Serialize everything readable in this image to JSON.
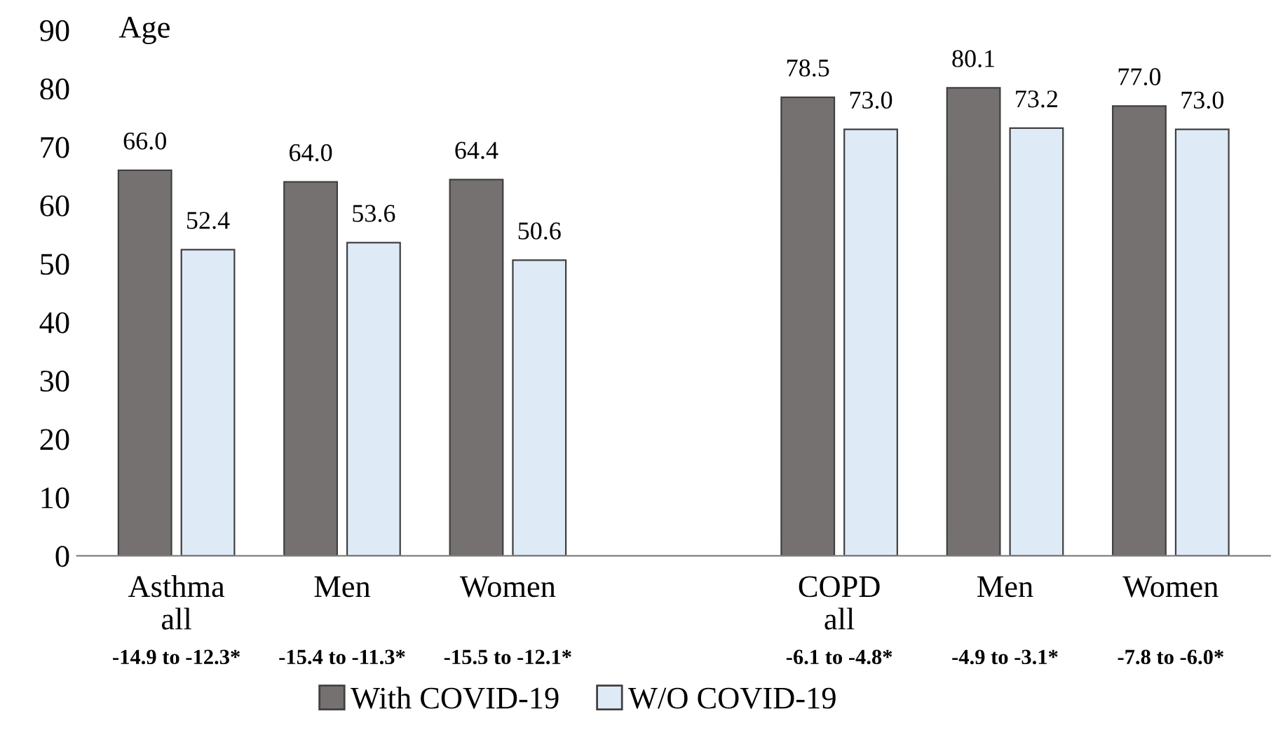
{
  "chart_data": {
    "type": "bar",
    "ylabel": "Age",
    "categories": [
      "Asthma\nall",
      "Men",
      "Women",
      null,
      "COPD\nall",
      "Men",
      "Women"
    ],
    "series": [
      {
        "name": "With COVID-19",
        "color": "#767171",
        "values": [
          66.0,
          64.0,
          64.4,
          null,
          78.5,
          80.1,
          77.0
        ],
        "value_labels": [
          "66.0",
          "64.0",
          "64.4",
          null,
          "78.5",
          "80.1",
          "77.0"
        ]
      },
      {
        "name": "W/O COVID-19",
        "color": "#deebf7",
        "values": [
          52.4,
          53.6,
          50.6,
          null,
          73.0,
          73.2,
          73.0
        ],
        "value_labels": [
          "52.4",
          "53.6",
          "50.6",
          null,
          "73.0",
          "73.2",
          "73.0"
        ]
      }
    ],
    "annotations": [
      "-14.9 to -12.3*",
      "-15.4 to -11.3*",
      "-15.5 to -12.1*",
      null,
      "-6.1 to -4.8*",
      "-4.9 to -3.1*",
      "-7.8 to -6.0*"
    ],
    "ylim": [
      0,
      90
    ],
    "yticks": [
      0,
      10,
      20,
      30,
      40,
      50,
      60,
      70,
      80,
      90
    ],
    "grid": false,
    "legend": "bottom"
  }
}
